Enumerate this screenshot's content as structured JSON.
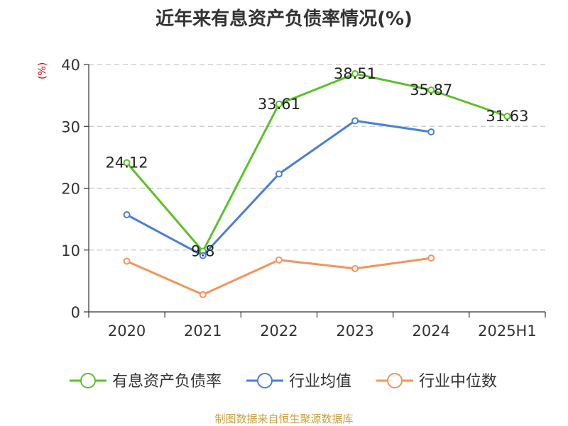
{
  "title": "近年来有息资产负债率情况(%)",
  "unit_label": "(%)",
  "source": "制图数据来自恒生聚源数据库",
  "chart_data": {
    "type": "line",
    "title": "近年来有息资产负债率情况(%)",
    "ylabel": "(%)",
    "xlabel": "",
    "categories": [
      "2020",
      "2021",
      "2022",
      "2023",
      "2024",
      "2025H1"
    ],
    "ylim": [
      0,
      40
    ],
    "yticks": [
      0,
      10,
      20,
      30,
      40
    ],
    "grid": true,
    "legend_position": "bottom",
    "series": [
      {
        "name": "有息资产负债率",
        "color": "#5bc12a",
        "values": [
          24.12,
          9.8,
          33.61,
          38.51,
          35.87,
          31.63
        ],
        "labels": [
          "24.12",
          "9.8",
          "33.61",
          "38.51",
          "35.87",
          "31.63"
        ]
      },
      {
        "name": "行业均值",
        "color": "#4a7fd8",
        "values": [
          15.7,
          9.1,
          22.3,
          30.9,
          29.1,
          null
        ]
      },
      {
        "name": "行业中位数",
        "color": "#f4945c",
        "values": [
          8.2,
          2.8,
          8.4,
          7.0,
          8.7,
          null
        ]
      }
    ]
  }
}
